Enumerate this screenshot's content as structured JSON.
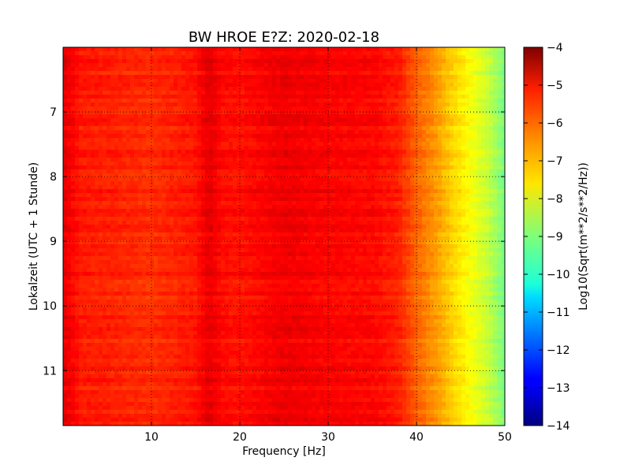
{
  "chart_data": {
    "type": "heatmap",
    "title": "BW HROE E?Z: 2020-02-18",
    "xlabel": "Frequency [Hz]",
    "ylabel": "Lokalzeit (UTC + 1 Stunde)",
    "xlim": [
      0,
      50
    ],
    "ylim": [
      6.0,
      11.85
    ],
    "y_axis_inverted": true,
    "x_ticks": [
      10,
      20,
      30,
      40,
      50
    ],
    "y_ticks": [
      7,
      8,
      9,
      10,
      11
    ],
    "grid": true,
    "colorscale": "jet",
    "colorbar": {
      "label": "Log10(Sqrt(m**2/s**2/Hz))",
      "range": [
        -14,
        -4
      ],
      "ticks": [
        -4,
        -5,
        -6,
        -7,
        -8,
        -9,
        -10,
        -11,
        -12,
        -13,
        -14
      ]
    },
    "frequency_profile": {
      "frequency_hz": [
        0,
        2,
        5,
        10,
        15,
        16.5,
        18,
        20,
        25,
        30,
        35,
        38,
        40,
        42,
        44,
        46,
        48,
        50
      ],
      "log10_amplitude": [
        -5.0,
        -5.5,
        -5.55,
        -5.7,
        -5.45,
        -5.0,
        -5.35,
        -5.4,
        -5.1,
        -5.25,
        -5.3,
        -5.55,
        -6.2,
        -6.7,
        -7.3,
        -7.8,
        -8.3,
        -9.1
      ]
    }
  }
}
